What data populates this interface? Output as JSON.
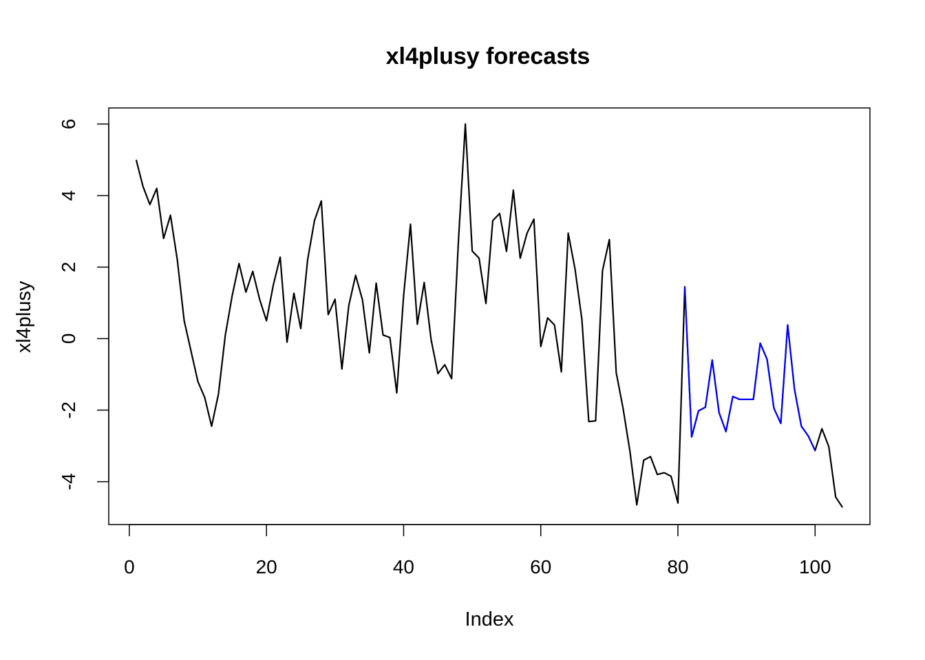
{
  "chart_data": {
    "type": "line",
    "title": "xl4plusy forecasts",
    "xlabel": "Index",
    "ylabel": "xl4plusy",
    "xlim": [
      -3,
      108
    ],
    "ylim": [
      -5.2,
      6.45
    ],
    "x_ticks": [
      0,
      20,
      40,
      60,
      80,
      100
    ],
    "y_ticks": [
      -4,
      -2,
      0,
      2,
      4,
      6
    ],
    "x_tick_labels": [
      "0",
      "20",
      "40",
      "60",
      "80",
      "100"
    ],
    "y_tick_labels": [
      "-4",
      "-2",
      "0",
      "2",
      "4",
      "6"
    ],
    "grid": false,
    "legend": "none",
    "colors": {
      "observed": "#000000",
      "forecast": "#0000ff"
    },
    "series": [
      {
        "color": "#000000",
        "x": [
          1,
          2,
          3,
          4,
          5,
          6,
          7,
          8,
          9,
          10,
          11,
          12,
          13,
          14,
          15,
          16,
          17,
          18,
          19,
          20,
          21,
          22,
          23,
          24,
          25,
          26,
          27,
          28,
          29,
          30,
          31,
          32,
          33,
          34,
          35,
          36,
          37,
          38,
          39,
          40,
          41,
          42,
          43,
          44,
          45,
          46,
          47,
          48,
          49,
          50,
          51,
          52,
          53,
          54,
          55,
          56,
          57,
          58,
          59,
          60,
          61,
          62,
          63,
          64,
          65,
          66,
          67,
          68,
          69,
          70,
          71,
          72,
          73,
          74,
          75,
          76,
          77,
          78,
          79,
          80,
          81,
          82,
          83,
          84,
          85,
          86,
          87,
          88,
          89,
          90,
          91,
          92,
          93,
          94,
          95,
          96,
          97,
          98,
          99,
          100,
          101,
          102,
          103,
          104
        ],
        "y": [
          5.0,
          4.25,
          3.75,
          4.2,
          2.8,
          3.45,
          2.2,
          0.5,
          -0.35,
          -1.2,
          -1.65,
          -2.45,
          -1.55,
          0.1,
          1.2,
          2.1,
          1.3,
          1.88,
          1.1,
          0.5,
          1.5,
          2.28,
          -0.1,
          1.27,
          0.28,
          2.2,
          3.3,
          3.85,
          0.67,
          1.1,
          -0.85,
          0.92,
          1.77,
          1.08,
          -0.4,
          1.55,
          0.1,
          0.03,
          -1.52,
          1.2,
          3.2,
          0.4,
          1.57,
          -0.02,
          -0.98,
          -0.73,
          -1.12,
          2.75,
          6.0,
          2.45,
          2.25,
          0.98,
          3.3,
          3.5,
          2.44,
          4.15,
          2.25,
          2.95,
          3.34,
          -0.22,
          0.58,
          0.38,
          -0.93,
          2.95,
          1.94,
          0.53,
          -2.32,
          -2.3,
          1.9,
          2.77,
          -0.95,
          -1.95,
          -3.15,
          -4.65,
          -3.4,
          -3.3,
          -3.8,
          -3.75,
          -3.85,
          -4.6,
          1.45,
          -2.75,
          -2.02,
          -1.92,
          -0.6,
          -2.07,
          -2.6,
          -1.62,
          -1.7,
          -1.7,
          -1.7,
          -0.13,
          -0.58,
          -1.95,
          -2.37,
          0.38,
          -1.42,
          -2.45,
          -2.72,
          -3.13,
          -2.52,
          -3.02,
          -4.43,
          -4.72
        ]
      },
      {
        "color": "#0000ff",
        "x": [
          81,
          82,
          83,
          84,
          85,
          86,
          87,
          88,
          89,
          90,
          91,
          92,
          93,
          94,
          95,
          96,
          97,
          98,
          99,
          100
        ],
        "y": [
          1.45,
          -2.75,
          -2.02,
          -1.92,
          -0.6,
          -2.07,
          -2.6,
          -1.62,
          -1.7,
          -1.7,
          -1.7,
          -0.13,
          -0.58,
          -1.95,
          -2.37,
          0.38,
          -1.42,
          -2.45,
          -2.72,
          -3.13
        ]
      }
    ]
  }
}
